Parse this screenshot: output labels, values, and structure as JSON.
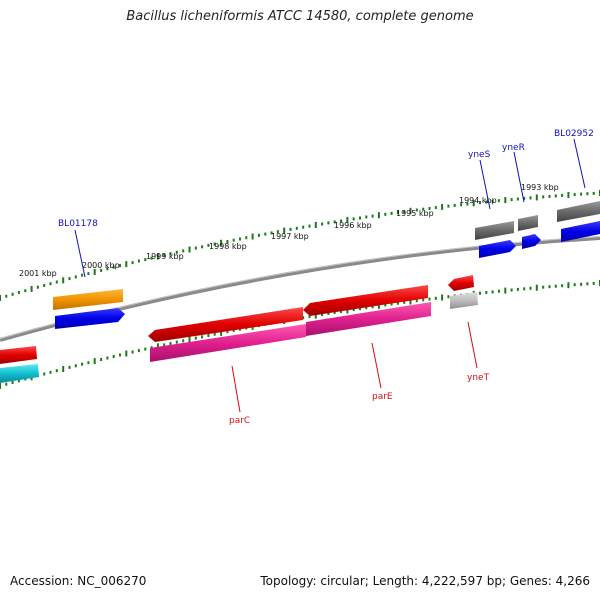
{
  "title": "Bacillus licheniformis ATCC 14580, complete genome",
  "footer": {
    "accession": "Accession: NC_006270",
    "topology": "Topology: circular; Length: 4,222,597 bp; Genes: 4,266"
  },
  "colors": {
    "backbone": "#8a8a8a",
    "tick": "#1a7a1a",
    "label_blue": "#1010c0",
    "label_red": "#d01010",
    "gene_red": "#e00000",
    "gene_blue": "#0000e8",
    "gene_orange": "#f29400",
    "gene_magenta": "#e0208f",
    "gene_cyan": "#10c0d0",
    "gene_gray": "#6a6a6a",
    "gene_lightgray": "#bdbdbd"
  },
  "scale_labels": [
    "2001 kbp",
    "2000 kbp",
    "1999 kbp",
    "1998 kbp",
    "1997 kbp",
    "1996 kbp",
    "1995 kbp",
    "1994 kbp",
    "1993 kbp"
  ],
  "gene_labels": {
    "blue": [
      "BL01178",
      "yneS",
      "yneR",
      "BL02952"
    ],
    "red": [
      "parC",
      "parE",
      "yneT"
    ]
  }
}
